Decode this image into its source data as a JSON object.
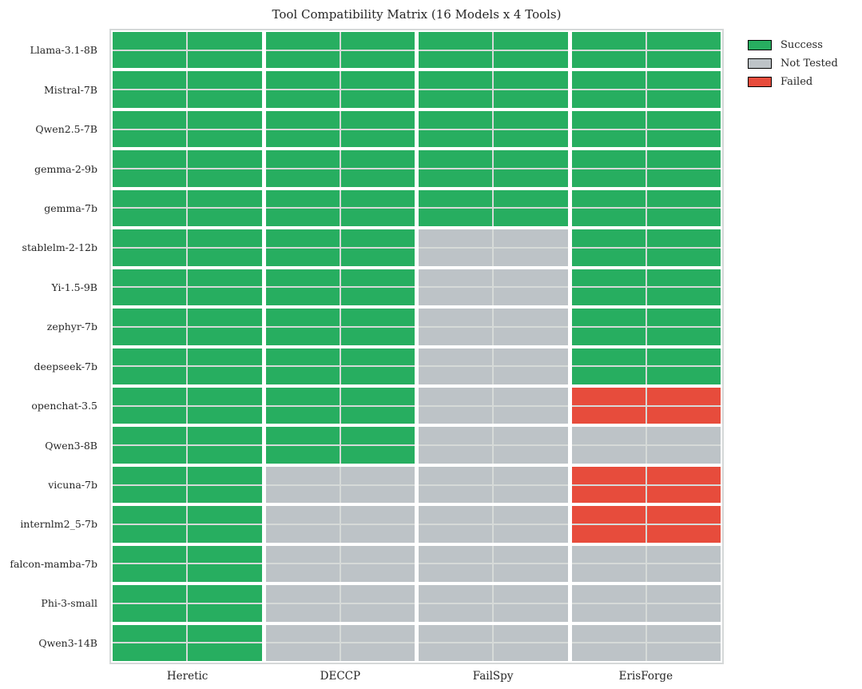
{
  "chart_data": {
    "type": "heatmap",
    "title": "Tool Compatibility Matrix (16 Models x 4 Tools)",
    "models": [
      "Llama-3.1-8B",
      "Mistral-7B",
      "Qwen2.5-7B",
      "gemma-2-9b",
      "gemma-7b",
      "stablelm-2-12b",
      "Yi-1.5-9B",
      "zephyr-7b",
      "deepseek-7b",
      "openchat-3.5",
      "Qwen3-8B",
      "vicuna-7b",
      "internlm2_5-7b",
      "falcon-mamba-7b",
      "Phi-3-small",
      "Qwen3-14B"
    ],
    "tools": [
      "Heretic",
      "DECCP",
      "FailSpy",
      "ErisForge"
    ],
    "matrix": [
      [
        "success",
        "success",
        "success",
        "success"
      ],
      [
        "success",
        "success",
        "success",
        "success"
      ],
      [
        "success",
        "success",
        "success",
        "success"
      ],
      [
        "success",
        "success",
        "success",
        "success"
      ],
      [
        "success",
        "success",
        "success",
        "success"
      ],
      [
        "success",
        "success",
        "not_tested",
        "success"
      ],
      [
        "success",
        "success",
        "not_tested",
        "success"
      ],
      [
        "success",
        "success",
        "not_tested",
        "success"
      ],
      [
        "success",
        "success",
        "not_tested",
        "success"
      ],
      [
        "success",
        "success",
        "not_tested",
        "failed"
      ],
      [
        "success",
        "success",
        "not_tested",
        "not_tested"
      ],
      [
        "success",
        "not_tested",
        "not_tested",
        "failed"
      ],
      [
        "success",
        "not_tested",
        "not_tested",
        "failed"
      ],
      [
        "success",
        "not_tested",
        "not_tested",
        "not_tested"
      ],
      [
        "success",
        "not_tested",
        "not_tested",
        "not_tested"
      ],
      [
        "success",
        "not_tested",
        "not_tested",
        "not_tested"
      ]
    ],
    "legend": [
      {
        "label": "Success",
        "status": "success"
      },
      {
        "label": "Not Tested",
        "status": "not_tested"
      },
      {
        "label": "Failed",
        "status": "failed"
      }
    ],
    "colors": {
      "success": "#27ae60",
      "not_tested": "#bdc3c7",
      "failed": "#e74c3c"
    },
    "layout_hints": {
      "legend_position": "outside upper right",
      "cell_subdivision": "2x2",
      "grid": "white gaps between cell groups, thin light lines inside groups",
      "x_axis_label": "",
      "y_axis_label": ""
    }
  }
}
